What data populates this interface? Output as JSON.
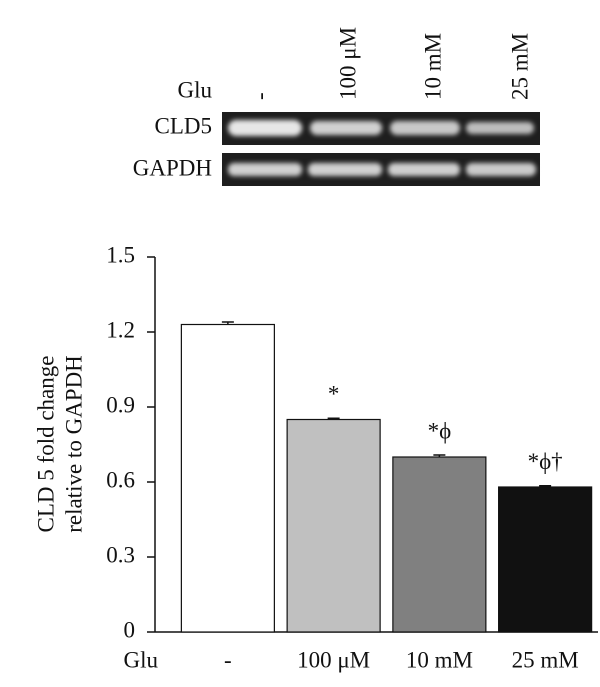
{
  "blot": {
    "treatment_label": "Glu",
    "lanes": [
      "-",
      "100 μM",
      "10 mM",
      "25 mM"
    ],
    "rows": [
      "CLD5",
      "GAPDH"
    ]
  },
  "chart_data": {
    "type": "bar",
    "y_label": [
      "CLD 5 fold change",
      "relative to GAPDH"
    ],
    "x_label": "Glu",
    "categories": [
      "-",
      "100 μM",
      "10 mM",
      "25 mM"
    ],
    "values": [
      1.23,
      0.85,
      0.7,
      0.58
    ],
    "errors": [
      0.01,
      0.005,
      0.008,
      0.005
    ],
    "colors": [
      "#ffffff",
      "#c0c0c0",
      "#808080",
      "#111111"
    ],
    "annotations": [
      null,
      "*",
      "*ϕ",
      "*ϕ†"
    ],
    "ylim": [
      0,
      1.5
    ],
    "yticks": [
      0,
      0.3,
      0.6,
      0.9,
      1.2,
      1.5
    ],
    "grid": false
  }
}
